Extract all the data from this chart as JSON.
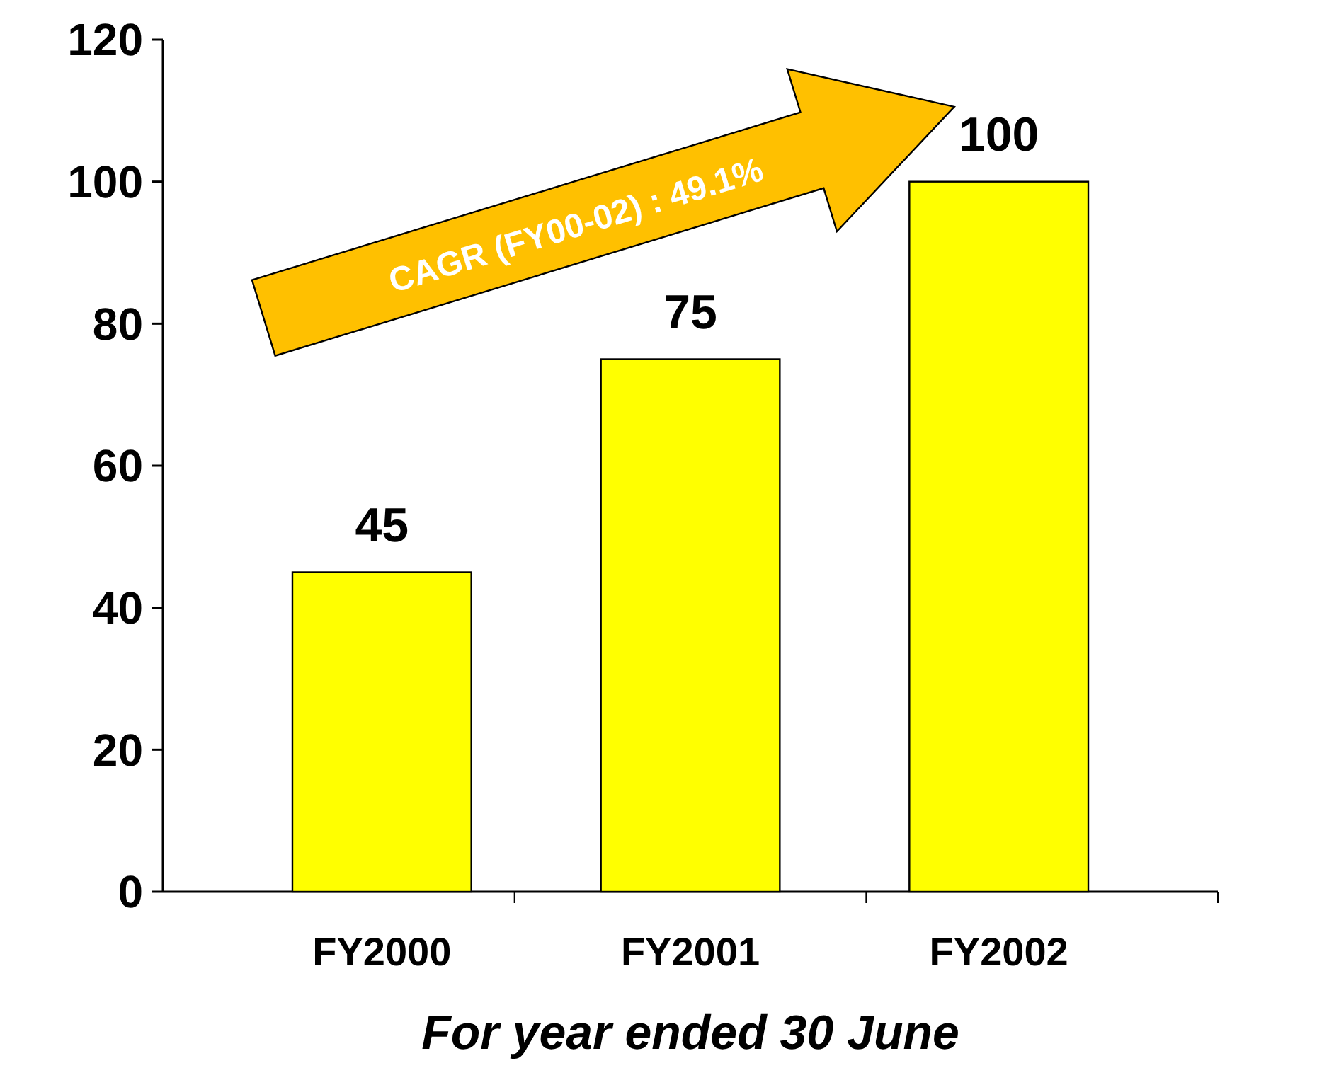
{
  "chart_data": {
    "type": "bar",
    "categories": [
      "FY2000",
      "FY2001",
      "FY2002"
    ],
    "values": [
      45,
      75,
      100
    ],
    "color": "#ffff00",
    "ylim": [
      0,
      120
    ],
    "yticks": [
      0,
      20,
      40,
      60,
      80,
      100,
      120
    ],
    "grid": false,
    "data_labels": true,
    "xlabel": "For year ended 30 June",
    "annotations": [
      "CAGR (FY00-02) : 49.1%"
    ]
  }
}
